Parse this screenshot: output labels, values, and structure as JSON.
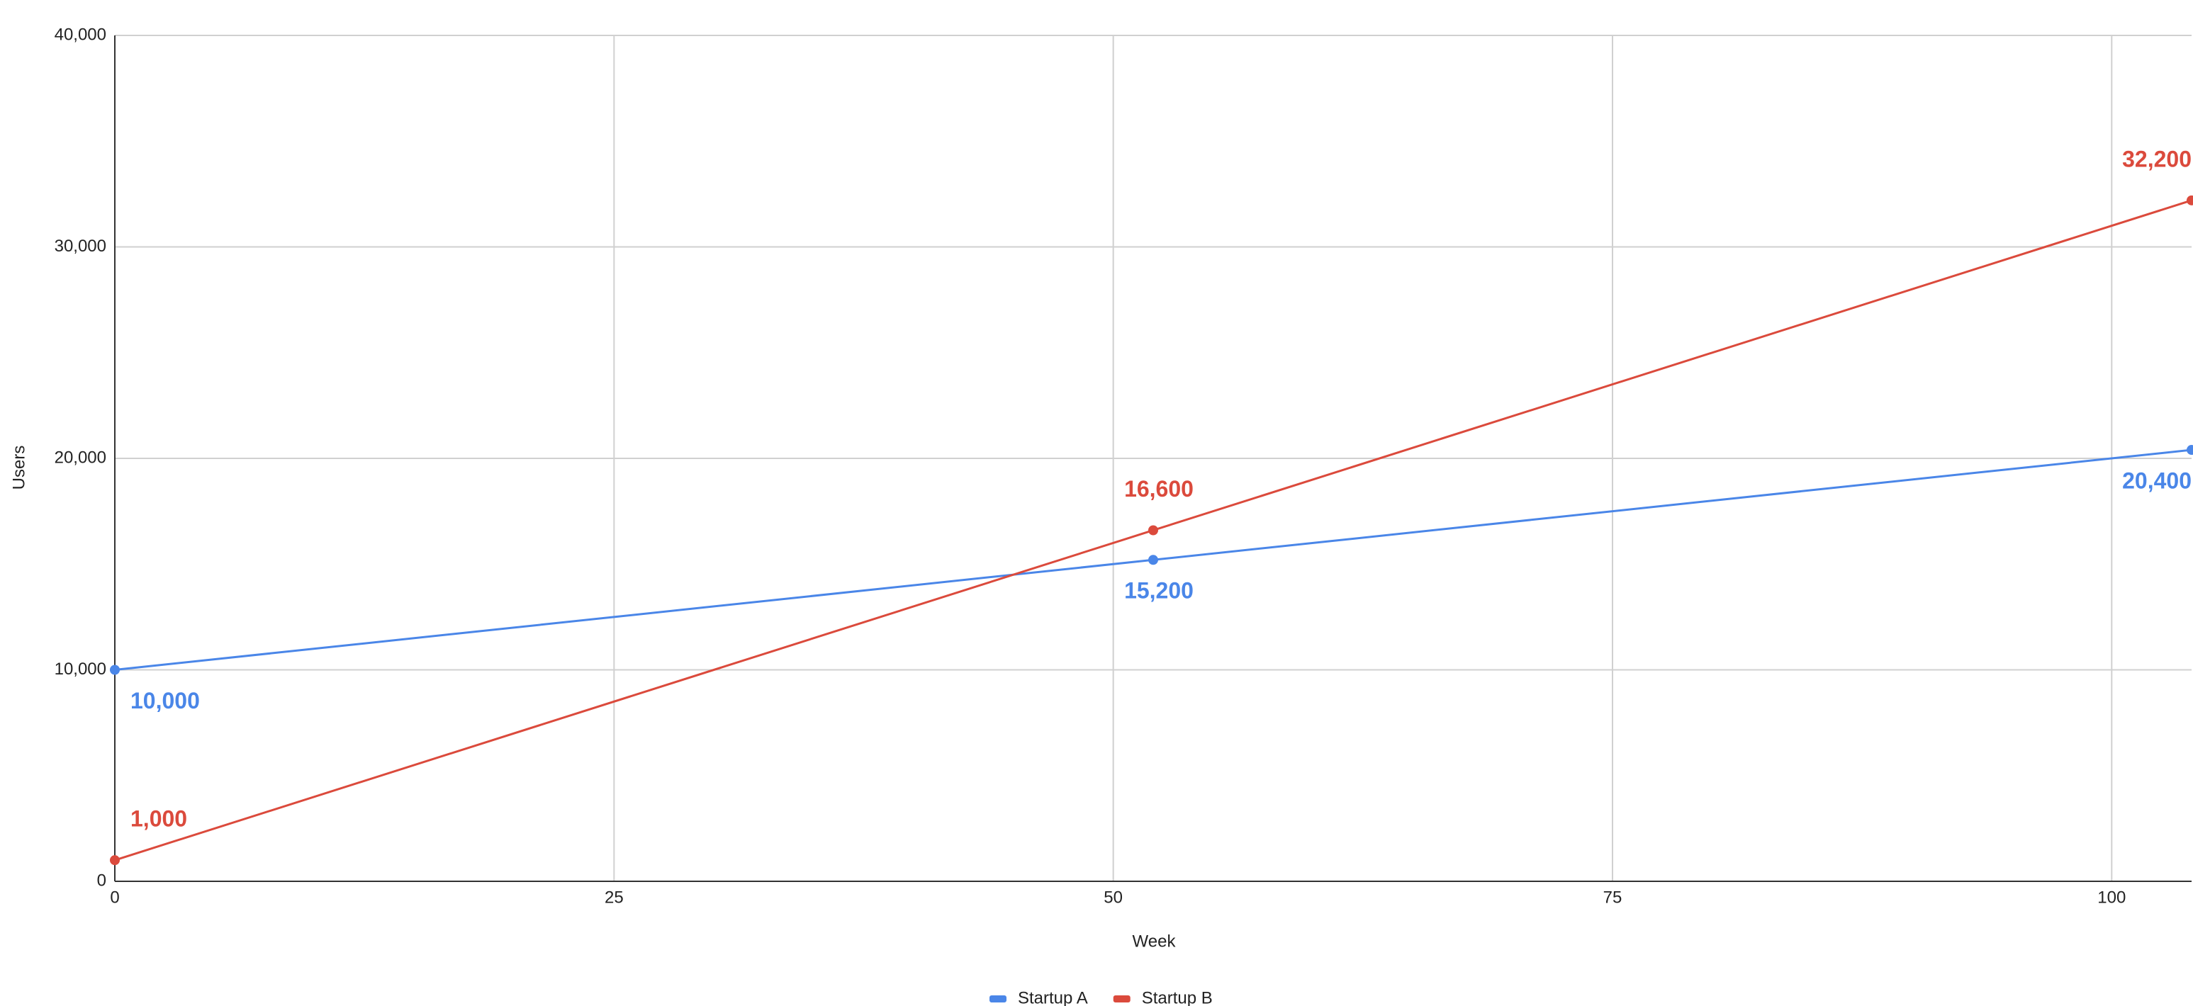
{
  "chart_data": {
    "type": "line",
    "x_label": "Week",
    "y_label": "Users",
    "x": [
      0,
      52,
      104
    ],
    "series": [
      {
        "name": "Startup A",
        "color": "#4a86e8",
        "values": [
          10000,
          15200,
          20400
        ],
        "value_labels": [
          "10,000",
          "15,200",
          "20,400"
        ]
      },
      {
        "name": "Startup B",
        "color": "#db4a3c",
        "values": [
          1000,
          16600,
          32200
        ],
        "value_labels": [
          "1,000",
          "16,600",
          "32,200"
        ]
      }
    ],
    "xlim": [
      0,
      104
    ],
    "xticks": [
      0,
      25,
      50,
      75,
      100
    ],
    "ylim": [
      0,
      40000
    ],
    "yticks": [
      {
        "value": 0,
        "label": "0"
      },
      {
        "value": 10000,
        "label": "10,000"
      },
      {
        "value": 20000,
        "label": "20,000"
      },
      {
        "value": 30000,
        "label": "30,000"
      },
      {
        "value": 40000,
        "label": "40,000"
      }
    ],
    "grid": true,
    "legend": "bottom"
  }
}
